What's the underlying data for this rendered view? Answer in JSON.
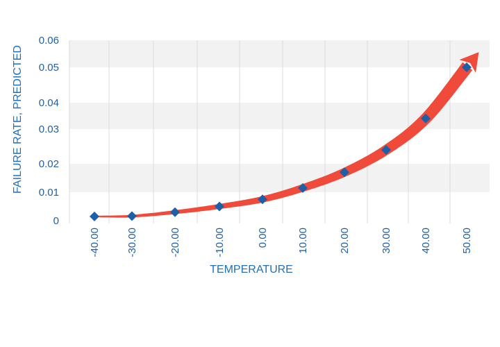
{
  "chart_data": {
    "type": "line",
    "title": "",
    "xlabel": "TEMPERATURE",
    "ylabel": "FAILURE RATE, PREDICTED",
    "x_tick_labels": [
      "-40.00",
      "-30.00",
      "-20.00",
      "-10.00",
      "0.00",
      "10.00",
      "20.00",
      "30.00",
      "40.00",
      "50.00"
    ],
    "y_tick_labels": [
      "0.06",
      "0.05",
      "0.04",
      "0.03",
      "0.02",
      "0.01",
      "0"
    ],
    "xlim": [
      -40,
      50
    ],
    "ylim": [
      0,
      0.06
    ],
    "grid": "vertical-lines-and-horizontal-bands",
    "series": [
      {
        "x": [
          -40,
          -30,
          -20,
          -10,
          0,
          10,
          20,
          30,
          40,
          50
        ],
        "values": [
          0.0015,
          0.0016,
          0.003,
          0.005,
          0.0075,
          0.0115,
          0.017,
          0.024,
          0.034,
          0.05
        ]
      }
    ],
    "colors": {
      "trend_arrow": "#f04a3a",
      "marker": "#1f5fa6",
      "band": "#f2f2f2",
      "gridline": "#d6dce6",
      "tick_text": "#1f5fa6"
    }
  }
}
